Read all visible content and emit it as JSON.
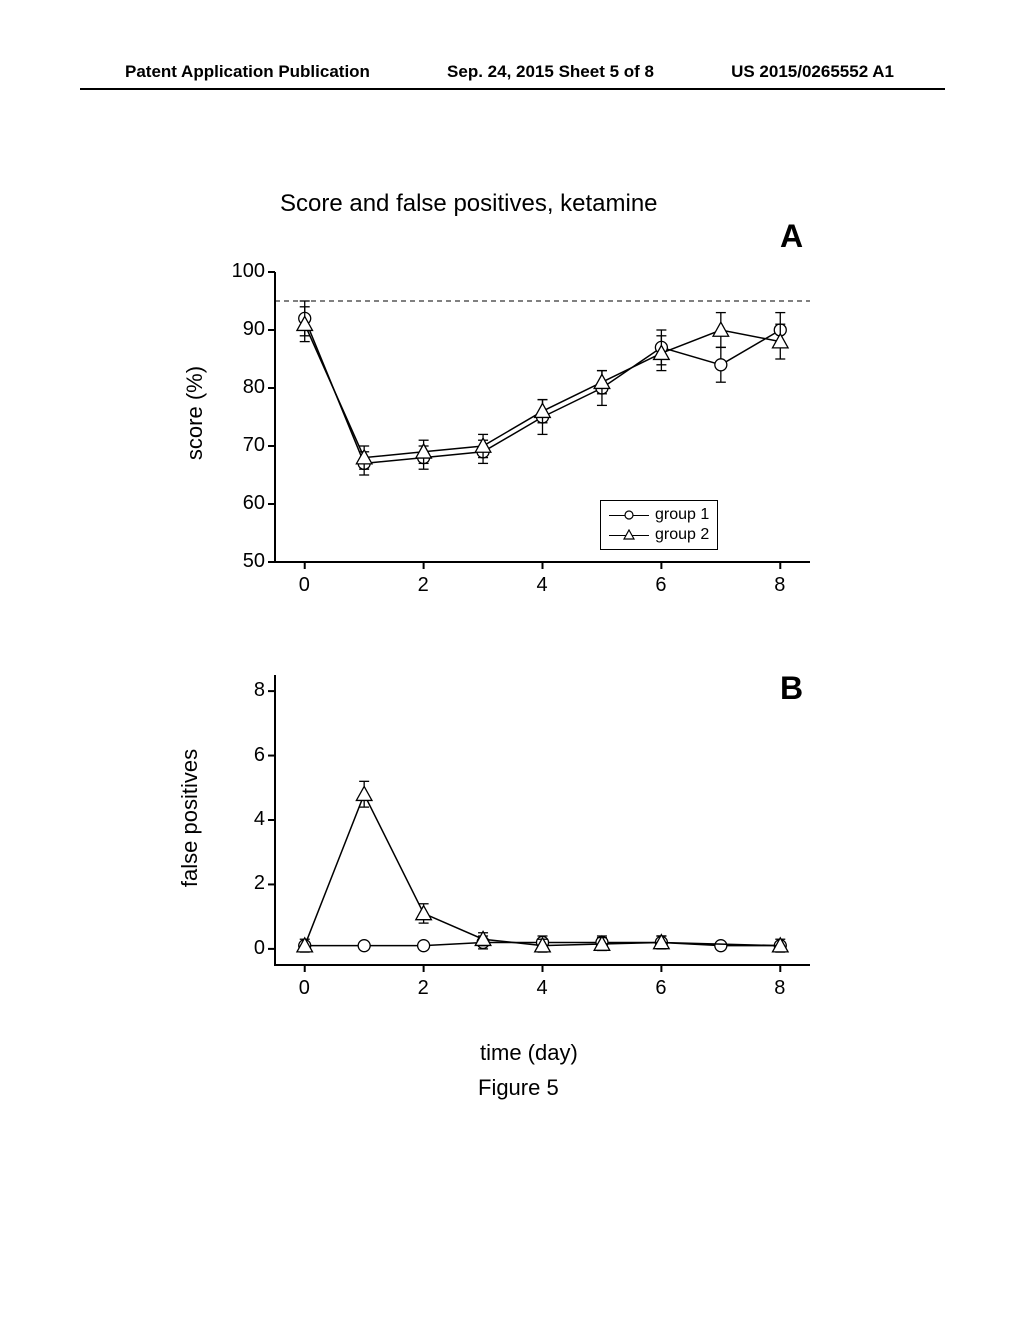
{
  "header": {
    "left": "Patent Application Publication",
    "center": "Sep. 24, 2015  Sheet 5 of 8",
    "right": "US 2015/0265552 A1"
  },
  "figure": {
    "main_title": "Score and false positives, ketamine",
    "caption": "Figure 5",
    "xlabel": "time (day)"
  },
  "panelA": {
    "label": "A",
    "ylabel": "score (%)",
    "type": "line",
    "xlim": [
      -0.5,
      8.5
    ],
    "ylim": [
      50,
      100
    ],
    "xticks": [
      0,
      2,
      4,
      6,
      8
    ],
    "yticks": [
      50,
      60,
      70,
      80,
      90,
      100
    ],
    "reference_line": 95,
    "series": [
      {
        "name": "group 1",
        "marker": "circle",
        "color": "#000000",
        "x": [
          0,
          1,
          2,
          3,
          4,
          5,
          6,
          7,
          8
        ],
        "y": [
          92,
          67,
          68,
          69,
          75,
          80,
          87,
          84,
          90
        ],
        "err": [
          3,
          2,
          2,
          2,
          3,
          3,
          3,
          3,
          3
        ]
      },
      {
        "name": "group 2",
        "marker": "triangle",
        "color": "#000000",
        "x": [
          0,
          1,
          2,
          3,
          4,
          5,
          6,
          7,
          8
        ],
        "y": [
          91,
          68,
          69,
          70,
          76,
          81,
          86,
          90,
          88
        ],
        "err": [
          3,
          2,
          2,
          2,
          2,
          2,
          3,
          3,
          3
        ]
      }
    ],
    "legend_labels": {
      "g1": "group 1",
      "g2": "group 2"
    }
  },
  "panelB": {
    "label": "B",
    "ylabel": "false positives",
    "type": "line",
    "xlim": [
      -0.5,
      8.5
    ],
    "ylim": [
      -0.5,
      8.5
    ],
    "xticks": [
      0,
      2,
      4,
      6,
      8
    ],
    "yticks": [
      0,
      2,
      4,
      6,
      8
    ],
    "series": [
      {
        "name": "group 1",
        "marker": "circle",
        "color": "#000000",
        "x": [
          0,
          1,
          2,
          3,
          4,
          5,
          6,
          7,
          8
        ],
        "y": [
          0.1,
          0.1,
          0.1,
          0.2,
          0.2,
          0.2,
          0.2,
          0.1,
          0.1
        ],
        "err": [
          0.1,
          0.1,
          0.1,
          0.2,
          0.2,
          0.2,
          0.2,
          0.1,
          0.1
        ]
      },
      {
        "name": "group 2",
        "marker": "triangle",
        "color": "#000000",
        "x": [
          0,
          1,
          2,
          3,
          4,
          5,
          6,
          8
        ],
        "y": [
          0.1,
          4.8,
          1.1,
          0.3,
          0.1,
          0.15,
          0.2,
          0.1
        ],
        "err": [
          0.2,
          0.4,
          0.3,
          0.2,
          0.2,
          0.2,
          0.2,
          0.2
        ]
      }
    ]
  },
  "style": {
    "line_width": 1.5,
    "marker_size": 6,
    "axis_color": "#000000",
    "background": "#ffffff",
    "text_color": "#000000"
  }
}
